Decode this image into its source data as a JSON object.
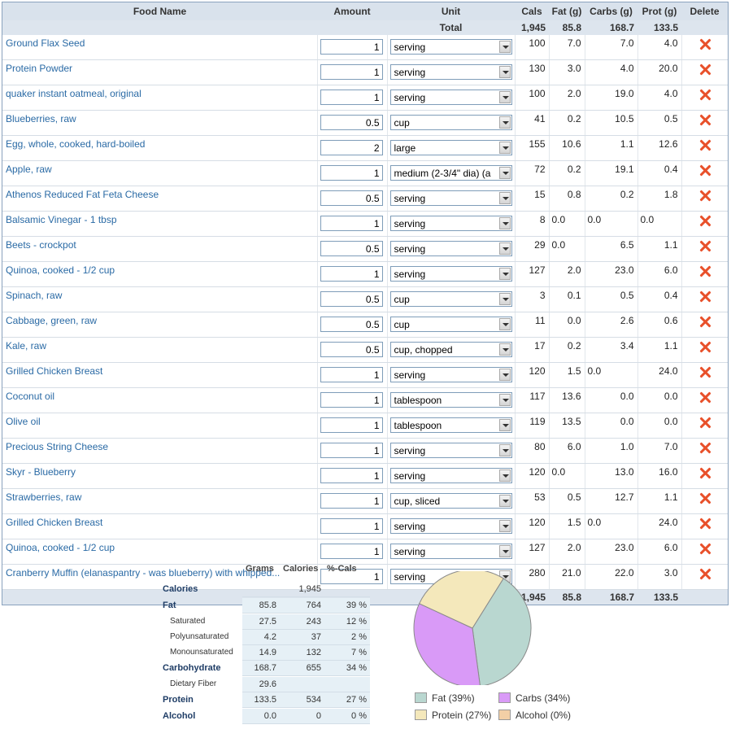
{
  "table": {
    "headers": {
      "name": "Food Name",
      "amount": "Amount",
      "unit": "Unit",
      "cals": "Cals",
      "fat": "Fat (g)",
      "carbs": "Carbs (g)",
      "prot": "Prot (g)",
      "delete": "Delete"
    },
    "total": {
      "label": "Total",
      "cals": "1,945",
      "fat": "85.8",
      "carbs": "168.7",
      "prot": "133.5"
    },
    "rows": [
      {
        "name": "Ground Flax Seed",
        "amount": "1",
        "unit": "serving",
        "cals": "100",
        "fat": "7.0",
        "carbs": "7.0",
        "prot": "4.0"
      },
      {
        "name": "Protein Powder",
        "amount": "1",
        "unit": "serving",
        "cals": "130",
        "fat": "3.0",
        "carbs": "4.0",
        "prot": "20.0"
      },
      {
        "name": "quaker instant oatmeal, original",
        "amount": "1",
        "unit": "serving",
        "cals": "100",
        "fat": "2.0",
        "carbs": "19.0",
        "prot": "4.0"
      },
      {
        "name": "Blueberries, raw",
        "amount": "0.5",
        "unit": "cup",
        "cals": "41",
        "fat": "0.2",
        "carbs": "10.5",
        "prot": "0.5"
      },
      {
        "name": "Egg, whole, cooked, hard-boiled",
        "amount": "2",
        "unit": "large",
        "cals": "155",
        "fat": "10.6",
        "carbs": "1.1",
        "prot": "12.6"
      },
      {
        "name": "Apple, raw",
        "amount": "1",
        "unit": "medium (2-3/4\" dia) (a",
        "cals": "72",
        "fat": "0.2",
        "carbs": "19.1",
        "prot": "0.4"
      },
      {
        "name": "Athenos Reduced Fat Feta Cheese",
        "amount": "0.5",
        "unit": "serving",
        "cals": "15",
        "fat": "0.8",
        "carbs": "0.2",
        "prot": "1.8"
      },
      {
        "name": "Balsamic Vinegar - 1 tbsp",
        "amount": "1",
        "unit": "serving",
        "cals": "8",
        "fat": "0.0",
        "carbs": "0.0",
        "prot": "0.0",
        "fat_left": true,
        "carbs_left": true,
        "prot_left": true
      },
      {
        "name": "Beets - crockpot",
        "amount": "0.5",
        "unit": "serving",
        "cals": "29",
        "fat": "0.0",
        "carbs": "6.5",
        "prot": "1.1",
        "fat_left": true
      },
      {
        "name": "Quinoa, cooked - 1/2 cup",
        "amount": "1",
        "unit": "serving",
        "cals": "127",
        "fat": "2.0",
        "carbs": "23.0",
        "prot": "6.0"
      },
      {
        "name": "Spinach, raw",
        "amount": "0.5",
        "unit": "cup",
        "cals": "3",
        "fat": "0.1",
        "carbs": "0.5",
        "prot": "0.4"
      },
      {
        "name": "Cabbage, green, raw",
        "amount": "0.5",
        "unit": "cup",
        "cals": "11",
        "fat": "0.0",
        "carbs": "2.6",
        "prot": "0.6"
      },
      {
        "name": "Kale, raw",
        "amount": "0.5",
        "unit": "cup, chopped",
        "cals": "17",
        "fat": "0.2",
        "carbs": "3.4",
        "prot": "1.1"
      },
      {
        "name": "Grilled Chicken Breast",
        "amount": "1",
        "unit": "serving",
        "cals": "120",
        "fat": "1.5",
        "carbs": "0.0",
        "prot": "24.0",
        "carbs_left": true
      },
      {
        "name": "Coconut oil",
        "amount": "1",
        "unit": "tablespoon",
        "cals": "117",
        "fat": "13.6",
        "carbs": "0.0",
        "prot": "0.0"
      },
      {
        "name": "Olive oil",
        "amount": "1",
        "unit": "tablespoon",
        "cals": "119",
        "fat": "13.5",
        "carbs": "0.0",
        "prot": "0.0"
      },
      {
        "name": "Precious String Cheese",
        "amount": "1",
        "unit": "serving",
        "cals": "80",
        "fat": "6.0",
        "carbs": "1.0",
        "prot": "7.0"
      },
      {
        "name": "Skyr - Blueberry",
        "amount": "1",
        "unit": "serving",
        "cals": "120",
        "fat": "0.0",
        "carbs": "13.0",
        "prot": "16.0",
        "fat_left": true
      },
      {
        "name": "Strawberries, raw",
        "amount": "1",
        "unit": "cup, sliced",
        "cals": "53",
        "fat": "0.5",
        "carbs": "12.7",
        "prot": "1.1"
      },
      {
        "name": "Grilled Chicken Breast",
        "amount": "1",
        "unit": "serving",
        "cals": "120",
        "fat": "1.5",
        "carbs": "0.0",
        "prot": "24.0",
        "carbs_left": true
      },
      {
        "name": "Quinoa, cooked - 1/2 cup",
        "amount": "1",
        "unit": "serving",
        "cals": "127",
        "fat": "2.0",
        "carbs": "23.0",
        "prot": "6.0"
      },
      {
        "name": "Cranberry Muffin (elanaspantry - was blueberry) with whipped...",
        "amount": "1",
        "unit": "serving",
        "cals": "280",
        "fat": "21.0",
        "carbs": "22.0",
        "prot": "3.0"
      }
    ]
  },
  "summary": {
    "headers": {
      "grams": "Grams",
      "calories": "Calories",
      "pct": "%-Cals"
    },
    "rows": [
      {
        "label": "Calories",
        "grams": "",
        "calories": "1,945",
        "pct": "",
        "sub": false,
        "blank": true
      },
      {
        "label": "Fat",
        "grams": "85.8",
        "calories": "764",
        "pct": "39 %",
        "sub": false
      },
      {
        "label": "Saturated",
        "grams": "27.5",
        "calories": "243",
        "pct": "12 %",
        "sub": true
      },
      {
        "label": "Polyunsaturated",
        "grams": "4.2",
        "calories": "37",
        "pct": "2 %",
        "sub": true
      },
      {
        "label": "Monounsaturated",
        "grams": "14.9",
        "calories": "132",
        "pct": "7 %",
        "sub": true
      },
      {
        "label": "Carbohydrate",
        "grams": "168.7",
        "calories": "655",
        "pct": "34 %",
        "sub": false
      },
      {
        "label": "Dietary Fiber",
        "grams": "29.6",
        "calories": "",
        "pct": "",
        "sub": true
      },
      {
        "label": "Protein",
        "grams": "133.5",
        "calories": "534",
        "pct": "27 %",
        "sub": false
      },
      {
        "label": "Alcohol",
        "grams": "0.0",
        "calories": "0",
        "pct": "0 %",
        "sub": false
      }
    ]
  },
  "chart_data": {
    "type": "pie",
    "categories": [
      "Fat",
      "Carbs",
      "Protein",
      "Alcohol"
    ],
    "values": [
      39,
      34,
      27,
      0
    ],
    "colors": [
      "#b9d7d0",
      "#d99af7",
      "#f4e8bb",
      "#f2cfa6"
    ],
    "legend_labels": [
      "Fat  (39%)",
      "Carbs  (34%)",
      "Protein  (27%)",
      "Alcohol  (0%)"
    ],
    "legend": "bottom"
  }
}
